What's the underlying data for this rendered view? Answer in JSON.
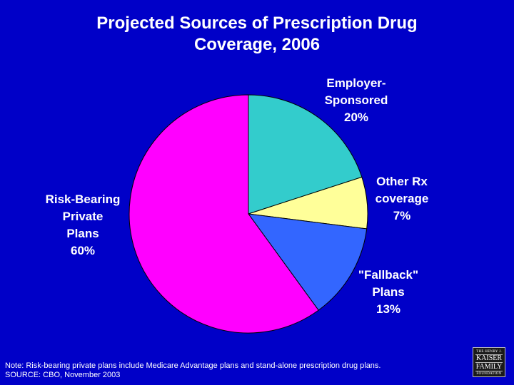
{
  "chart_data": {
    "type": "pie",
    "title_lines": [
      "Projected Sources of Prescription Drug",
      "Coverage, 2006"
    ],
    "slices": [
      {
        "label_lines": [
          "Employer-",
          "Sponsored"
        ],
        "value": 20,
        "value_label": "20%",
        "color": "#33cccc"
      },
      {
        "label_lines": [
          "Other Rx",
          "coverage"
        ],
        "value": 7,
        "value_label": "7%",
        "color": "#ffff99"
      },
      {
        "label_lines": [
          "\"Fallback\"",
          "Plans"
        ],
        "value": 13,
        "value_label": "13%",
        "color": "#3366ff"
      },
      {
        "label_lines": [
          "Risk-Bearing",
          "Private",
          "Plans"
        ],
        "value": 60,
        "value_label": "60%",
        "color": "#ff00ff"
      }
    ]
  },
  "footnote": {
    "note": "Note:  Risk-bearing private plans include Medicare Advantage plans and stand-alone prescription drug plans.",
    "source": "SOURCE: CBO, November 2003"
  },
  "logo": {
    "line1": "THE HENRY J.",
    "line2": "KAISER",
    "line3": "FAMILY",
    "line4": "FOUNDATION"
  },
  "colors": {
    "background": "#0000c8",
    "text": "#ffffff"
  }
}
